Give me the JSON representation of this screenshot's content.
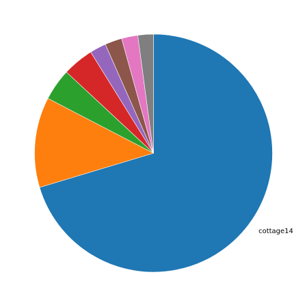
{
  "chart_data": {
    "type": "pie",
    "start_angle_deg": 90,
    "direction": "clockwise",
    "slices": [
      {
        "label": "cottage14",
        "value": 70.0,
        "color": "#1f77b4"
      },
      {
        "label": "",
        "value": 12.2,
        "color": "#ff7f0e"
      },
      {
        "label": "",
        "value": 4.3,
        "color": "#2ca02c"
      },
      {
        "label": "",
        "value": 4.2,
        "color": "#d62728"
      },
      {
        "label": "",
        "value": 2.2,
        "color": "#9467bd"
      },
      {
        "label": "",
        "value": 2.3,
        "color": "#8c564b"
      },
      {
        "label": "",
        "value": 2.2,
        "color": "#e377c2"
      },
      {
        "label": "",
        "value": 2.1,
        "color": "#7f7f7f"
      }
    ]
  }
}
